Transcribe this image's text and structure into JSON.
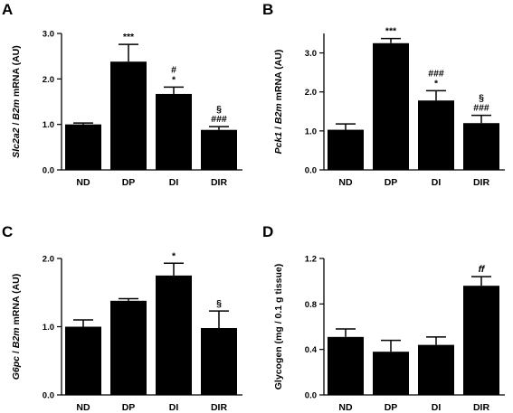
{
  "chart_data": [
    {
      "panel": "A",
      "type": "bar",
      "ylabel_parts": [
        "Slc2a2",
        " / ",
        "B2m",
        " mRNA (AU)"
      ],
      "ylim": [
        0,
        3.0
      ],
      "yticks": [
        "0.0",
        "1.0",
        "2.0",
        "3.0"
      ],
      "ytick_values": [
        0,
        1,
        2,
        3
      ],
      "categories": [
        "ND",
        "DP",
        "DI",
        "DIR"
      ],
      "values": [
        1.0,
        2.38,
        1.67,
        0.88
      ],
      "errors": [
        0.03,
        0.38,
        0.15,
        0.07
      ],
      "annotations": [
        [],
        [
          "***"
        ],
        [
          "#",
          "*"
        ],
        [
          "§",
          "###"
        ]
      ],
      "grid": false
    },
    {
      "panel": "B",
      "type": "bar",
      "ylabel_parts": [
        "Pck1",
        " / ",
        "B2m",
        " mRNA (AU)"
      ],
      "ylim": [
        0,
        3.5
      ],
      "yticks": [
        "0.0",
        "1.0",
        "2.0",
        "3.0"
      ],
      "ytick_values": [
        0,
        1,
        2,
        3
      ],
      "categories": [
        "ND",
        "DP",
        "DI",
        "DIR"
      ],
      "values": [
        1.03,
        3.25,
        1.78,
        1.2
      ],
      "errors": [
        0.15,
        0.12,
        0.25,
        0.2
      ],
      "annotations": [
        [],
        [
          "***"
        ],
        [
          "###",
          "*"
        ],
        [
          "§",
          "###"
        ]
      ],
      "grid": false
    },
    {
      "panel": "C",
      "type": "bar",
      "ylabel_parts": [
        "G6pc",
        " / ",
        "B2m",
        " mRNA (AU)"
      ],
      "ylim": [
        0,
        2.0
      ],
      "yticks": [
        "0.0",
        "1.0",
        "2.0"
      ],
      "ytick_values": [
        0,
        1,
        2
      ],
      "categories": [
        "ND",
        "DP",
        "DI",
        "DIR"
      ],
      "values": [
        1.0,
        1.38,
        1.75,
        0.98
      ],
      "errors": [
        0.1,
        0.03,
        0.18,
        0.25
      ],
      "annotations": [
        [],
        [],
        [
          "*"
        ],
        [
          "§"
        ]
      ],
      "grid": false
    },
    {
      "panel": "D",
      "type": "bar",
      "ylabel_parts": [
        "Glycogen (mg / 0.1 g tissue)"
      ],
      "ylim": [
        0,
        1.2
      ],
      "yticks": [
        "0.0",
        "0.4",
        "0.8",
        "1.2"
      ],
      "ytick_values": [
        0,
        0.4,
        0.8,
        1.2
      ],
      "categories": [
        "ND",
        "DP",
        "DI",
        "DIR"
      ],
      "values": [
        0.51,
        0.38,
        0.44,
        0.96
      ],
      "errors": [
        0.07,
        0.1,
        0.07,
        0.08
      ],
      "annotations": [
        [],
        [],
        [],
        [
          "ff"
        ]
      ],
      "grid": false
    }
  ]
}
